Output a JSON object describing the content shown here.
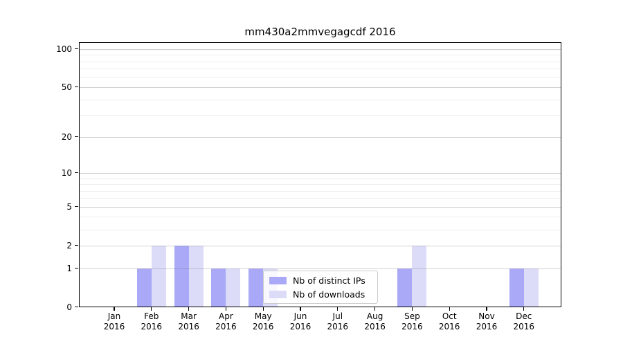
{
  "title": "mm430a2mmvegagcdf 2016",
  "chart_data": {
    "type": "bar",
    "title": "mm430a2mmvegagcdf 2016",
    "categories": [
      "Jan 2016",
      "Feb 2016",
      "Mar 2016",
      "Apr 2016",
      "May 2016",
      "Jun 2016",
      "Jul 2016",
      "Aug 2016",
      "Sep 2016",
      "Oct 2016",
      "Nov 2016",
      "Dec 2016"
    ],
    "series": [
      {
        "name": "Nb of distinct IPs",
        "color": "#a9a9f7",
        "values": [
          0,
          1,
          2,
          1,
          1,
          0,
          0,
          0,
          1,
          0,
          0,
          1
        ]
      },
      {
        "name": "Nb of downloads",
        "color": "#dcdcf8",
        "values": [
          0,
          2,
          2,
          1,
          1,
          0,
          0,
          0,
          2,
          0,
          0,
          1
        ]
      }
    ],
    "xlabel": "",
    "ylabel": "",
    "y_axis": {
      "scale": "log1p",
      "major_ticks": [
        0,
        1,
        2,
        5,
        10,
        20,
        50,
        100
      ],
      "minor_gridlines": [
        3,
        4,
        6,
        7,
        8,
        9,
        30,
        40,
        60,
        70,
        80,
        90
      ],
      "ylim": [
        0,
        113
      ]
    },
    "grid": "on",
    "legend_position": "lower-center-inside"
  },
  "colors": {
    "bar_distinct_ips": "#a9a9f7",
    "bar_downloads": "#dcdcf8",
    "grid_major": "rgba(120,120,120,0.35)",
    "grid_minor": "rgba(120,120,120,0.13)",
    "spine": "#000000",
    "legend_border": "#cccccc"
  }
}
